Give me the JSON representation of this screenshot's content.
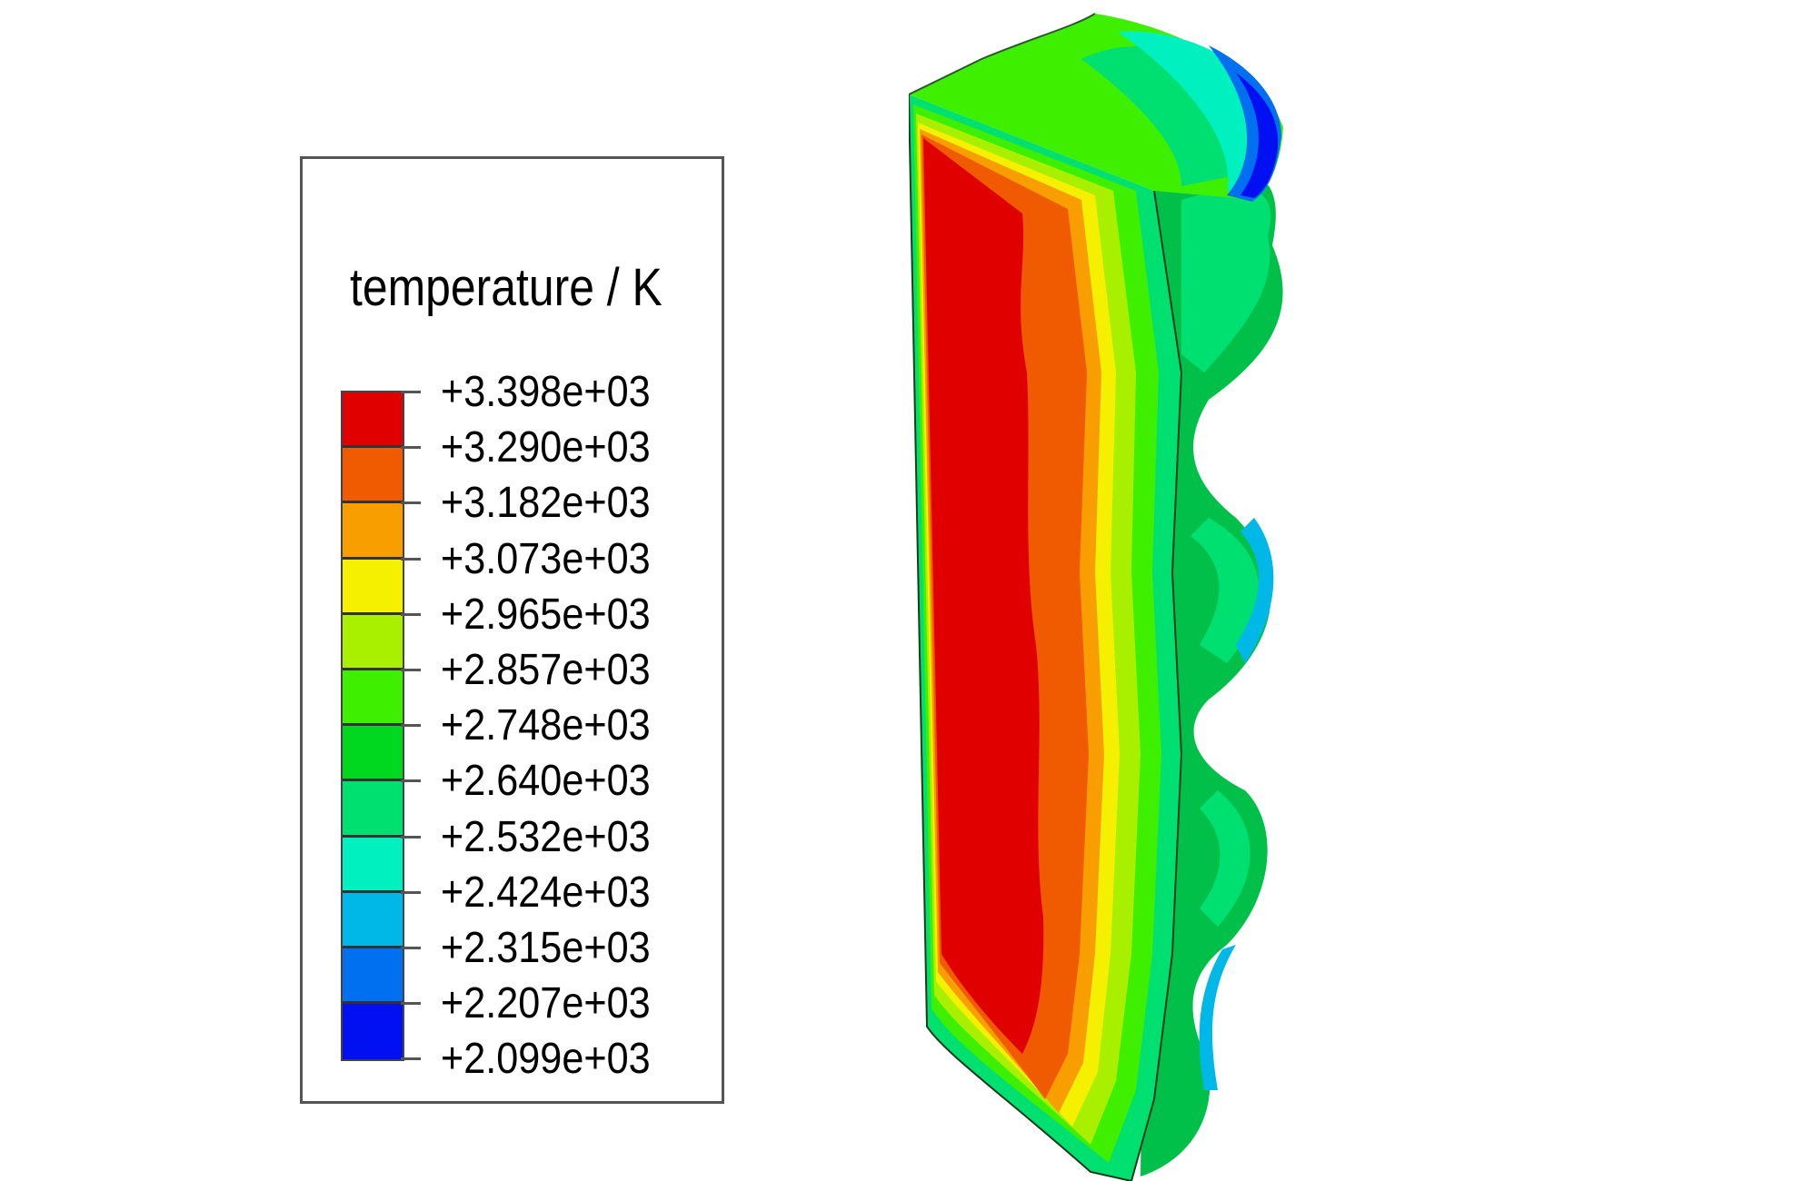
{
  "legend": {
    "title": "temperature / K",
    "labels": [
      "+3.398e+03",
      "+3.290e+03",
      "+3.182e+03",
      "+3.073e+03",
      "+2.965e+03",
      "+2.857e+03",
      "+2.748e+03",
      "+2.640e+03",
      "+2.532e+03",
      "+2.424e+03",
      "+2.315e+03",
      "+2.207e+03",
      "+2.099e+03"
    ],
    "colors": [
      "#e00000",
      "#f05a00",
      "#f89e00",
      "#f4f000",
      "#a8f000",
      "#3ef000",
      "#00d820",
      "#00e070",
      "#00f0c0",
      "#00b8e8",
      "#0070f0",
      "#0010f0"
    ]
  },
  "model": {
    "colors": {
      "hot": "#e00000",
      "orange": "#f05a00",
      "amber": "#f89e00",
      "yellow": "#f4f000",
      "lime": "#a8f000",
      "green": "#3ef000",
      "mid_green": "#00d820",
      "teal": "#00e070",
      "cyan": "#00f0c0",
      "sky": "#00b8e8",
      "blue": "#0070f0",
      "deep_blue": "#0010f0"
    }
  }
}
